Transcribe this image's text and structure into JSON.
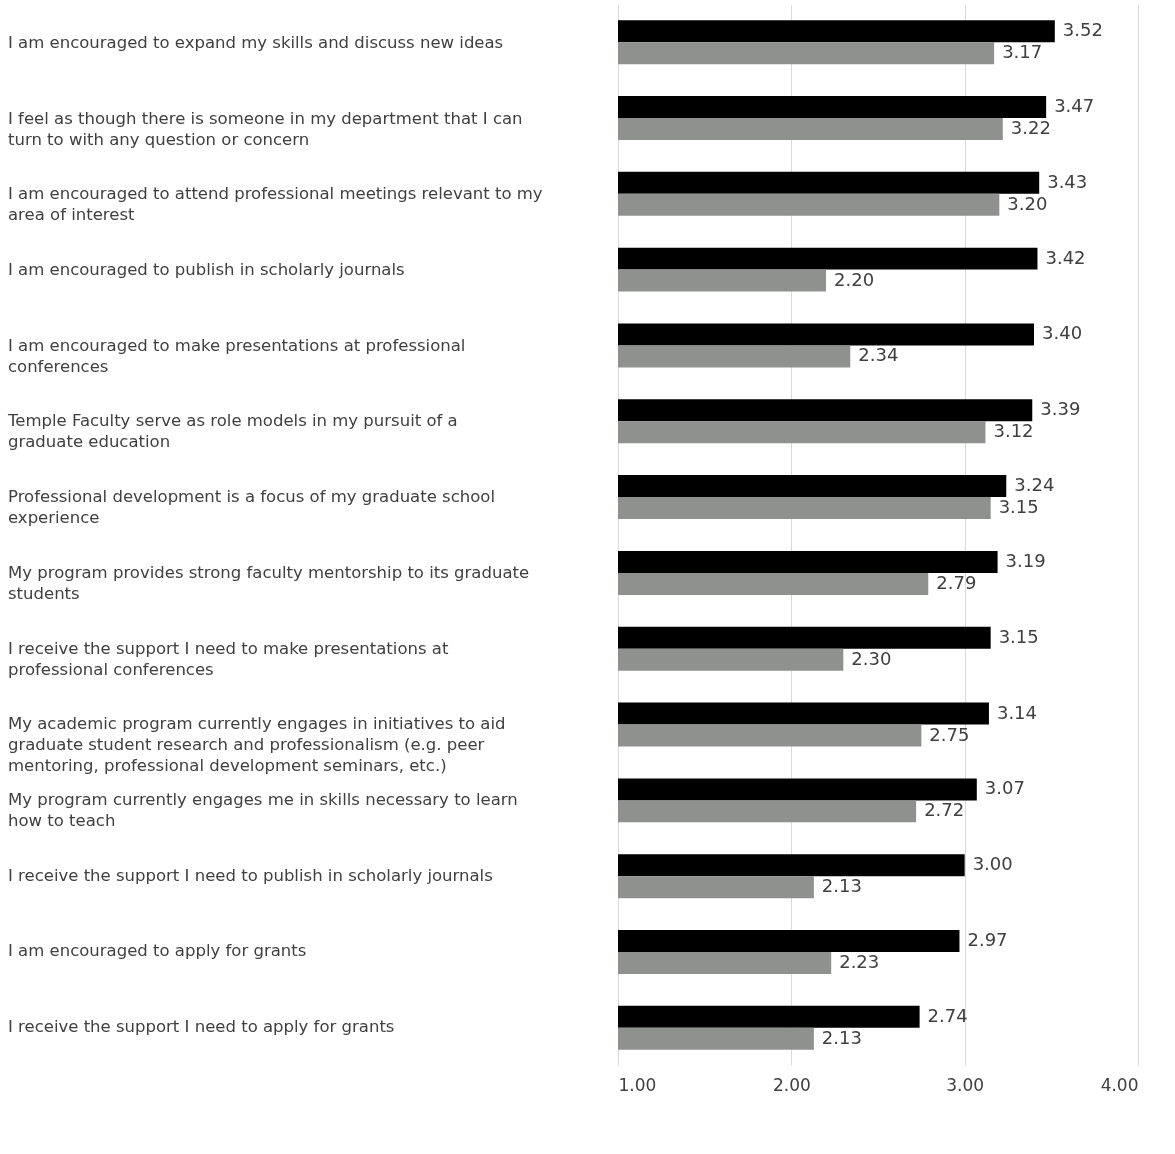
{
  "chart_data": {
    "type": "bar",
    "orientation": "horizontal",
    "categories": [
      "I am encouraged to expand my skills and discuss new ideas",
      "I feel as though there is someone in my department that I can turn to with any question or concern",
      "I am encouraged to attend professional meetings relevant to my area of interest",
      "I am encouraged to publish in scholarly journals",
      "I am encouraged to make presentations at professional conferences",
      "Temple Faculty serve as role models in my pursuit of a graduate education",
      "Professional development is a focus of my graduate school experience",
      "My program provides strong faculty mentorship to its graduate students",
      "I receive the support I need to make presentations at professional conferences",
      "My academic program currently engages in initiatives to aid graduate student research and professionalism (e.g. peer mentoring, professional development seminars, etc.)",
      "My program currently engages me in skills necessary to learn how to teach",
      "I receive the support I need to publish in scholarly journals",
      "I am encouraged to apply for grants",
      "I receive the support I need to apply for grants"
    ],
    "series": [
      {
        "color": "#000000",
        "values": [
          3.52,
          3.47,
          3.43,
          3.42,
          3.4,
          3.39,
          3.24,
          3.19,
          3.15,
          3.14,
          3.07,
          3.0,
          2.97,
          2.74
        ],
        "value_labels": [
          "3.52",
          "3.47",
          "3.43",
          "3.42",
          "3.40",
          "3.39",
          "3.24",
          "3.19",
          "3.15",
          "3.14",
          "3.07",
          "3.00",
          "2.97",
          "2.74"
        ]
      },
      {
        "color": "#8f918f",
        "values": [
          3.17,
          3.22,
          3.2,
          2.2,
          2.34,
          3.12,
          3.15,
          2.79,
          2.3,
          2.75,
          2.72,
          2.13,
          2.23,
          2.13
        ],
        "value_labels": [
          "3.17",
          "3.22",
          "3.20",
          "2.20",
          "2.34",
          "3.12",
          "3.15",
          "2.79",
          "2.30",
          "2.75",
          "2.72",
          "2.13",
          "2.23",
          "2.13"
        ]
      }
    ],
    "xlim": [
      1,
      4
    ],
    "xticks": [
      {
        "value": 1,
        "label": "1.00"
      },
      {
        "value": 2,
        "label": "2.00"
      },
      {
        "value": 3,
        "label": "3.00"
      },
      {
        "value": 4,
        "label": "4.00"
      }
    ],
    "grid": "x",
    "legend": false
  }
}
